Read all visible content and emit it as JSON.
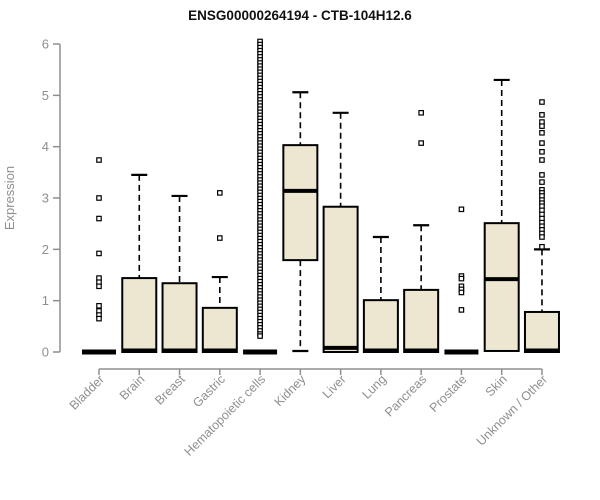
{
  "page": {
    "background": "#ffffff"
  },
  "chart_data": {
    "type": "box",
    "title": "ENSG00000264194 - CTB-104H12.6",
    "xlabel": "",
    "ylabel": "Expression",
    "ylim": [
      0,
      6
    ],
    "yticks": [
      0,
      1,
      2,
      3,
      4,
      5,
      6
    ],
    "grid": false,
    "legend": false,
    "colors": {
      "box_fill": "#ede7d1",
      "box_stroke": "#000000",
      "median": "#000000",
      "axis": "#8f8f8f",
      "labels": "#8f8f8f",
      "title": "#111111",
      "outlier_fill": "#ffffff"
    },
    "categories": [
      "Bladder",
      "Brain",
      "Breast",
      "Gastric",
      "Hematopoietic cells",
      "Kidney",
      "Liver",
      "Lung",
      "Pancreas",
      "Prostate",
      "Skin",
      "Unknown / Other"
    ],
    "series": [
      {
        "category": "Bladder",
        "q1": 0,
        "median": 0,
        "q3": 0,
        "whisker_low": 0,
        "whisker_high": 0,
        "outliers": [
          3.74,
          3.0,
          2.6,
          1.92,
          1.44,
          1.36,
          1.28,
          0.9,
          0.8,
          0.72,
          0.65
        ]
      },
      {
        "category": "Brain",
        "q1": 0,
        "median": 0.03,
        "q3": 1.44,
        "whisker_low": 0,
        "whisker_high": 3.45,
        "outliers": []
      },
      {
        "category": "Breast",
        "q1": 0,
        "median": 0.03,
        "q3": 1.34,
        "whisker_low": 0,
        "whisker_high": 3.04,
        "outliers": []
      },
      {
        "category": "Gastric",
        "q1": 0,
        "median": 0.03,
        "q3": 0.86,
        "whisker_low": 0,
        "whisker_high": 1.46,
        "outliers": [
          3.1,
          2.22
        ]
      },
      {
        "category": "Hematopoietic cells",
        "q1": 0,
        "median": 0,
        "q3": 0,
        "whisker_low": 0,
        "whisker_high": 0,
        "outliers": [
          6.05,
          5.99,
          5.93,
          5.87,
          5.81,
          5.75,
          5.69,
          5.63,
          5.57,
          5.51,
          5.45,
          5.39,
          5.33,
          5.27,
          5.21,
          5.15,
          5.09,
          5.03,
          4.97,
          4.91,
          4.85,
          4.79,
          4.73,
          4.67,
          4.61,
          4.55,
          4.49,
          4.43,
          4.37,
          4.31,
          4.25,
          4.19,
          4.13,
          4.07,
          4.01,
          3.95,
          3.89,
          3.83,
          3.77,
          3.71,
          3.65,
          3.59,
          3.53,
          3.47,
          3.41,
          3.35,
          3.29,
          3.23,
          3.17,
          3.11,
          3.05,
          2.99,
          2.93,
          2.87,
          2.81,
          2.75,
          2.69,
          2.63,
          2.57,
          2.51,
          2.45,
          2.39,
          2.33,
          2.27,
          2.21,
          2.15,
          2.09,
          2.03,
          1.97,
          1.91,
          1.85,
          1.79,
          1.73,
          1.67,
          1.61,
          1.55,
          1.49,
          1.43,
          1.37,
          1.31,
          1.25,
          1.19,
          1.13,
          1.07,
          1.01,
          0.95,
          0.89,
          0.83,
          0.77,
          0.71,
          0.65,
          0.59,
          0.53,
          0.47,
          0.41,
          0.35,
          0.31
        ]
      },
      {
        "category": "Kidney",
        "q1": 1.79,
        "median": 3.14,
        "q3": 4.03,
        "whisker_low": 0.02,
        "whisker_high": 5.06,
        "outliers": []
      },
      {
        "category": "Liver",
        "q1": 0,
        "median": 0.08,
        "q3": 2.83,
        "whisker_low": 0,
        "whisker_high": 4.66,
        "outliers": []
      },
      {
        "category": "Lung",
        "q1": 0,
        "median": 0.03,
        "q3": 1.01,
        "whisker_low": 0,
        "whisker_high": 2.24,
        "outliers": []
      },
      {
        "category": "Pancreas",
        "q1": 0,
        "median": 0.03,
        "q3": 1.21,
        "whisker_low": 0,
        "whisker_high": 2.47,
        "outliers": [
          4.66,
          4.07
        ]
      },
      {
        "category": "Prostate",
        "q1": 0,
        "median": 0,
        "q3": 0,
        "whisker_low": 0,
        "whisker_high": 0,
        "outliers": [
          2.78,
          1.48,
          1.43,
          1.28,
          1.22,
          1.16,
          0.82
        ]
      },
      {
        "category": "Skin",
        "q1": 0.02,
        "median": 1.42,
        "q3": 2.51,
        "whisker_low": 0.02,
        "whisker_high": 5.3,
        "outliers": []
      },
      {
        "category": "Unknown / Other",
        "q1": 0,
        "median": 0.03,
        "q3": 0.78,
        "whisker_low": 0,
        "whisker_high": 2.0,
        "outliers": [
          4.87,
          4.62,
          4.48,
          4.4,
          4.27,
          4.07,
          3.9,
          3.74,
          3.45,
          3.31,
          3.16,
          3.1,
          3.04,
          2.96,
          2.9,
          2.84,
          2.76,
          2.68,
          2.6,
          2.52,
          2.45,
          2.38,
          2.31,
          2.24,
          2.05
        ]
      }
    ]
  }
}
